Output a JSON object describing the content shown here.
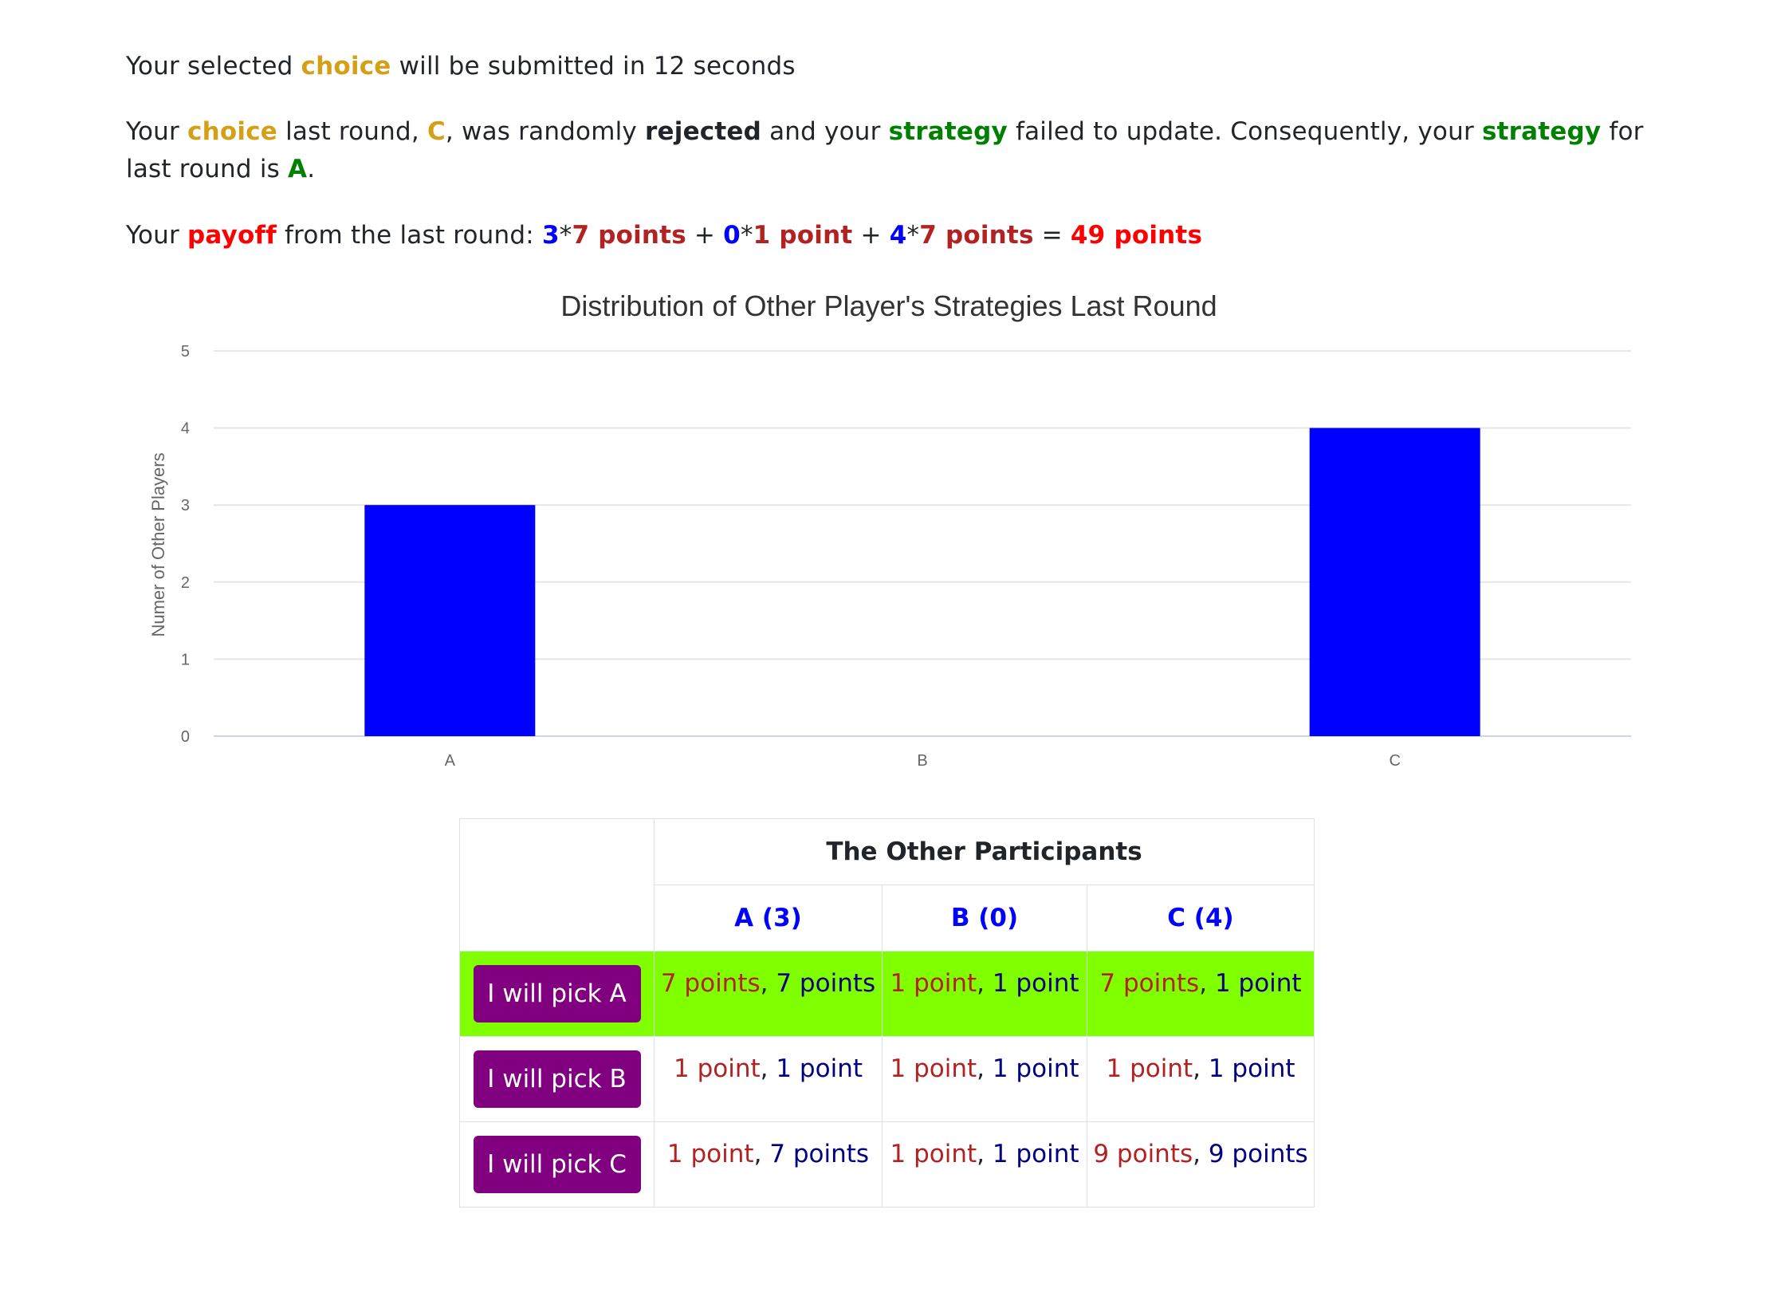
{
  "line1": {
    "pre": "Your selected ",
    "choice_word": "choice",
    "post": " will be submitted in 12 seconds"
  },
  "line2": {
    "t1": "Your ",
    "choice_word": "choice",
    "t2": " last round, ",
    "choice_value": "C",
    "t3": ", was randomly ",
    "rejected_word": "rejected",
    "t4": " and your ",
    "strategy_word": "strategy",
    "t5": " failed to update. Consequently, your ",
    "strategy_word2": "strategy",
    "t6": " for last round is ",
    "strategy_value": "A",
    "t7": "."
  },
  "line3": {
    "t1": "Your ",
    "payoff_word": "payoff",
    "t2": " from the last round: ",
    "n1": "3",
    "star1": "*",
    "p1": "7 points",
    "plus1": " + ",
    "n2": "0",
    "star2": "*",
    "p2": "1 point",
    "plus2": " + ",
    "n3": "4",
    "star3": "*",
    "p3": "7 points",
    "eq": " = ",
    "total": "49 points"
  },
  "chart_data": {
    "type": "bar",
    "title": "Distribution of Other Player's Strategies Last Round",
    "ylabel": "Numer of Other Players",
    "xlabel": "",
    "categories": [
      "A",
      "B",
      "C"
    ],
    "values": [
      3,
      0,
      4
    ],
    "ylim": [
      0,
      5
    ],
    "yticks": [
      "0",
      "1",
      "2",
      "3",
      "4",
      "5"
    ],
    "bar_color": "#0000ff",
    "grid": true
  },
  "table": {
    "header": "The Other Participants",
    "columns": [
      "A (3)",
      "B (0)",
      "C (4)"
    ],
    "rows": [
      {
        "button": "I will pick A",
        "cells": [
          {
            "mine": "7 points",
            "theirs": "7 points"
          },
          {
            "mine": "1 point",
            "theirs": "1 point"
          },
          {
            "mine": "7 points",
            "theirs": "1 point"
          }
        ]
      },
      {
        "button": "I will pick B",
        "cells": [
          {
            "mine": "1 point",
            "theirs": "1 point"
          },
          {
            "mine": "1 point",
            "theirs": "1 point"
          },
          {
            "mine": "1 point",
            "theirs": "1 point"
          }
        ]
      },
      {
        "button": "I will pick C",
        "cells": [
          {
            "mine": "1 point",
            "theirs": "7 points"
          },
          {
            "mine": "1 point",
            "theirs": "1 point"
          },
          {
            "mine": "9 points",
            "theirs": "9 points"
          }
        ]
      }
    ],
    "highlight_row": 0,
    "highlight_color": "#7fff00",
    "button_color": "#800080"
  }
}
